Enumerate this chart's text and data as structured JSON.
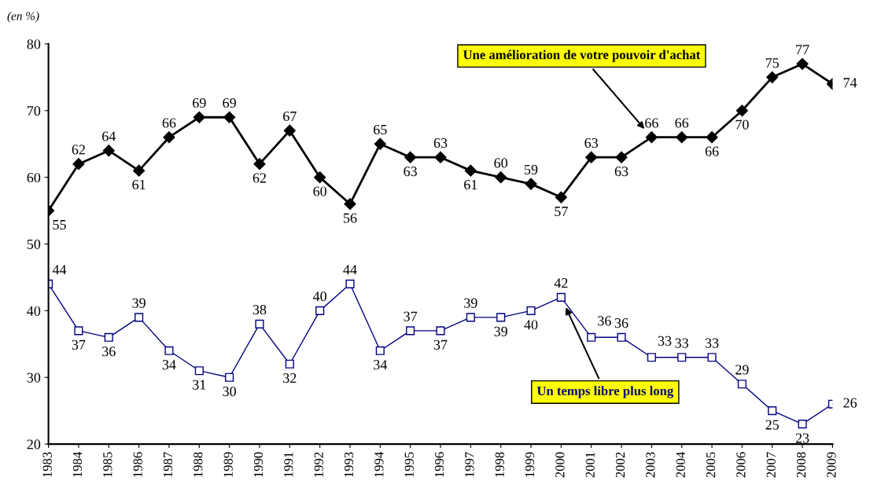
{
  "chart_data": {
    "type": "line",
    "categories": [
      "1983",
      "1984",
      "1985",
      "1986",
      "1987",
      "1988",
      "1989",
      "1990",
      "1991",
      "1992",
      "1993",
      "1994",
      "1995",
      "1996",
      "1997",
      "1998",
      "1999",
      "2000",
      "2001",
      "2002",
      "2003",
      "2004",
      "2005",
      "2006",
      "2007",
      "2008",
      "2009"
    ],
    "series": [
      {
        "name": "Une amélioration de votre pouvoir d'achat",
        "color": "#000000",
        "marker": "diamond",
        "values": [
          55,
          62,
          64,
          61,
          66,
          69,
          69,
          62,
          67,
          60,
          56,
          65,
          63,
          63,
          61,
          60,
          59,
          57,
          63,
          63,
          66,
          66,
          66,
          70,
          75,
          77,
          74
        ]
      },
      {
        "name": "Un temps libre plus long",
        "color": "#000080",
        "marker": "square",
        "values": [
          44,
          37,
          36,
          39,
          34,
          31,
          30,
          38,
          32,
          40,
          44,
          34,
          37,
          37,
          39,
          39,
          40,
          42,
          36,
          36,
          33,
          33,
          33,
          29,
          25,
          23,
          26
        ]
      }
    ],
    "ylim": [
      20,
      80
    ],
    "yticks": [
      20,
      30,
      40,
      50,
      60,
      70,
      80
    ],
    "data_labels": true,
    "grid": false,
    "annotations": [
      "(en %)"
    ]
  }
}
